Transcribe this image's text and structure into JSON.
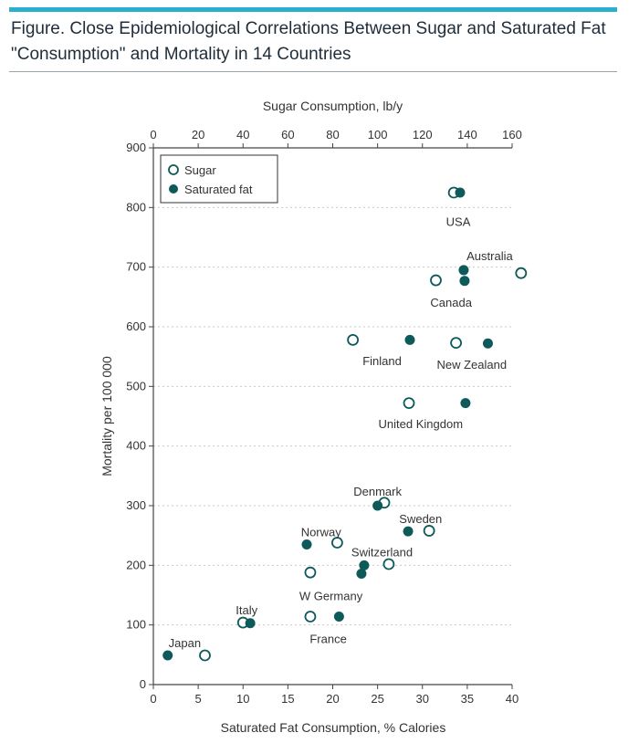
{
  "figure": {
    "title": "Figure. Close Epidemiological Correlations Between Sugar and Saturated Fat \"Consumption\" and Mortality in 14 Countries"
  },
  "colors": {
    "accent_rule": "#2ab0cf",
    "marker": "#0e5a5a",
    "grid": "#c9c9c9"
  },
  "chart_data": {
    "type": "scatter",
    "title": "Close Epidemiological Correlations Between Sugar and Saturated Fat \"Consumption\" and Mortality in 14 Countries",
    "xlabel_bottom": "Saturated Fat Consumption, % Calories",
    "xlabel_top": "Sugar Consumption, lb/y",
    "ylabel": "Mortality per 100 000",
    "x_bottom_ticks": [
      0,
      5,
      10,
      15,
      20,
      25,
      30,
      35,
      40
    ],
    "x_top_ticks": [
      0,
      20,
      40,
      60,
      80,
      100,
      120,
      140,
      160
    ],
    "y_ticks": [
      0,
      100,
      200,
      300,
      400,
      500,
      600,
      700,
      800,
      900
    ],
    "xlim_bottom": [
      0,
      40
    ],
    "xlim_top": [
      0,
      160
    ],
    "ylim": [
      0,
      900
    ],
    "legend": {
      "position": "top-left",
      "entries": [
        {
          "label": "Sugar",
          "marker": "open-circle"
        },
        {
          "label": "Saturated fat",
          "marker": "filled-circle"
        }
      ]
    },
    "series": [
      {
        "name": "Sugar",
        "axis": "top",
        "marker": "open",
        "points": [
          {
            "country": "USA",
            "x": 134,
            "y": 825
          },
          {
            "country": "Australia",
            "x": 164,
            "y": 690
          },
          {
            "country": "Canada",
            "x": 126,
            "y": 678
          },
          {
            "country": "Finland",
            "x": 89,
            "y": 578
          },
          {
            "country": "New Zealand",
            "x": 135,
            "y": 573
          },
          {
            "country": "United Kingdom",
            "x": 114,
            "y": 472
          },
          {
            "country": "Denmark",
            "x": 103,
            "y": 305
          },
          {
            "country": "Sweden",
            "x": 123,
            "y": 258
          },
          {
            "country": "Norway",
            "x": 82,
            "y": 238
          },
          {
            "country": "Switzerland",
            "x": 105,
            "y": 202
          },
          {
            "country": "W Germany",
            "x": 70,
            "y": 188
          },
          {
            "country": "France",
            "x": 70,
            "y": 114
          },
          {
            "country": "Italy",
            "x": 40,
            "y": 104
          },
          {
            "country": "Japan",
            "x": 23,
            "y": 49
          }
        ]
      },
      {
        "name": "Saturated fat",
        "axis": "bottom",
        "marker": "filled",
        "points": [
          {
            "country": "USA",
            "x": 34.2,
            "y": 825
          },
          {
            "country": "Australia",
            "x": 34.6,
            "y": 695
          },
          {
            "country": "Canada",
            "x": 34.7,
            "y": 677
          },
          {
            "country": "Finland",
            "x": 28.6,
            "y": 578
          },
          {
            "country": "New Zealand",
            "x": 37.3,
            "y": 572
          },
          {
            "country": "United Kingdom",
            "x": 34.8,
            "y": 472
          },
          {
            "country": "Denmark",
            "x": 25.0,
            "y": 300
          },
          {
            "country": "Sweden",
            "x": 28.4,
            "y": 257
          },
          {
            "country": "Norway",
            "x": 17.1,
            "y": 235
          },
          {
            "country": "Switzerland",
            "x": 23.5,
            "y": 200
          },
          {
            "country": "W Germany",
            "x": 23.2,
            "y": 186
          },
          {
            "country": "France",
            "x": 20.7,
            "y": 114
          },
          {
            "country": "Italy",
            "x": 10.8,
            "y": 103
          },
          {
            "country": "Japan",
            "x": 1.6,
            "y": 49
          }
        ]
      }
    ],
    "country_labels": [
      {
        "text": "USA",
        "x": 34.0,
        "y": 775
      },
      {
        "text": "Australia",
        "x": 37.5,
        "y": 718
      },
      {
        "text": "Canada",
        "x": 33.2,
        "y": 640
      },
      {
        "text": "Finland",
        "x": 25.5,
        "y": 542
      },
      {
        "text": "New Zealand",
        "x": 35.5,
        "y": 536
      },
      {
        "text": "United Kingdom",
        "x": 29.8,
        "y": 436
      },
      {
        "text": "Denmark",
        "x": 25.0,
        "y": 323
      },
      {
        "text": "Sweden",
        "x": 29.8,
        "y": 277
      },
      {
        "text": "Norway",
        "x": 18.7,
        "y": 255
      },
      {
        "text": "Switzerland",
        "x": 25.5,
        "y": 221
      },
      {
        "text": "W Germany",
        "x": 19.8,
        "y": 148
      },
      {
        "text": "France",
        "x": 19.5,
        "y": 76
      },
      {
        "text": "Italy",
        "x": 10.4,
        "y": 124
      },
      {
        "text": "Japan",
        "x": 3.5,
        "y": 69
      }
    ]
  }
}
